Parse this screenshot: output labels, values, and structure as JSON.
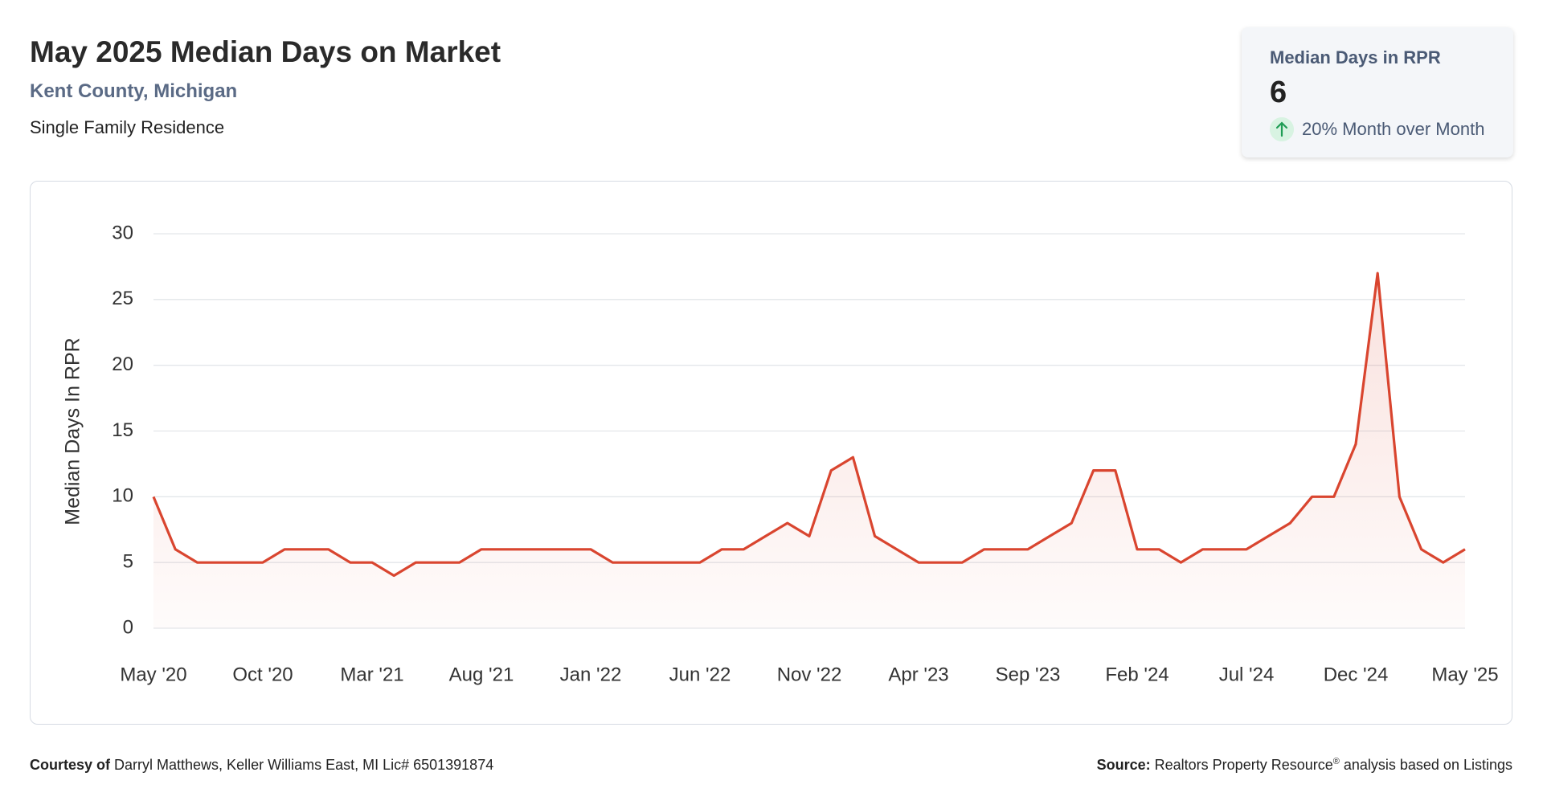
{
  "header": {
    "title": "May 2025 Median Days on Market",
    "subtitle": "Kent County, Michigan",
    "property_type": "Single Family Residence"
  },
  "card": {
    "title": "Median Days in RPR",
    "value": 6,
    "change": "20% Month over Month"
  },
  "chart_data": {
    "type": "line",
    "y_label": "Median Days In RPR",
    "categories": [
      "May '20",
      null,
      null,
      null,
      null,
      "Oct '20",
      null,
      null,
      null,
      null,
      "Mar '21",
      null,
      null,
      null,
      null,
      "Aug '21",
      null,
      null,
      null,
      null,
      "Jan '22",
      null,
      null,
      null,
      null,
      "Jun '22",
      null,
      null,
      null,
      null,
      "Nov '22",
      null,
      null,
      null,
      null,
      "Apr '23",
      null,
      null,
      null,
      null,
      "Sep '23",
      null,
      null,
      null,
      null,
      "Feb '24",
      null,
      null,
      null,
      null,
      "Jul '24",
      null,
      null,
      null,
      null,
      "Dec '24",
      null,
      null,
      null,
      null,
      "May '25"
    ],
    "values": [
      10,
      6,
      5,
      5,
      5,
      5,
      6,
      6,
      6,
      5,
      5,
      4,
      5,
      5,
      5,
      6,
      6,
      6,
      6,
      6,
      6,
      5,
      5,
      5,
      5,
      5,
      6,
      6,
      7,
      8,
      7,
      12,
      13,
      7,
      6,
      5,
      5,
      5,
      6,
      6,
      6,
      7,
      8,
      12,
      12,
      6,
      6,
      5,
      6,
      6,
      6,
      7,
      8,
      10,
      10,
      14,
      27,
      10,
      6,
      5,
      6
    ],
    "color": "#d9452f",
    "ylim": [
      0,
      30
    ],
    "yticks": [
      0,
      5,
      10,
      15,
      20,
      25,
      30
    ],
    "grid": true
  },
  "footer": {
    "courtesy_label": "Courtesy of",
    "courtesy_text": "Darryl Matthews, Keller Williams East, MI Lic# 6501391874",
    "source_label": "Source:",
    "source_text": "Realtors Property Resource",
    "source_sup": "®",
    "source_suffix": "analysis based on Listings"
  }
}
